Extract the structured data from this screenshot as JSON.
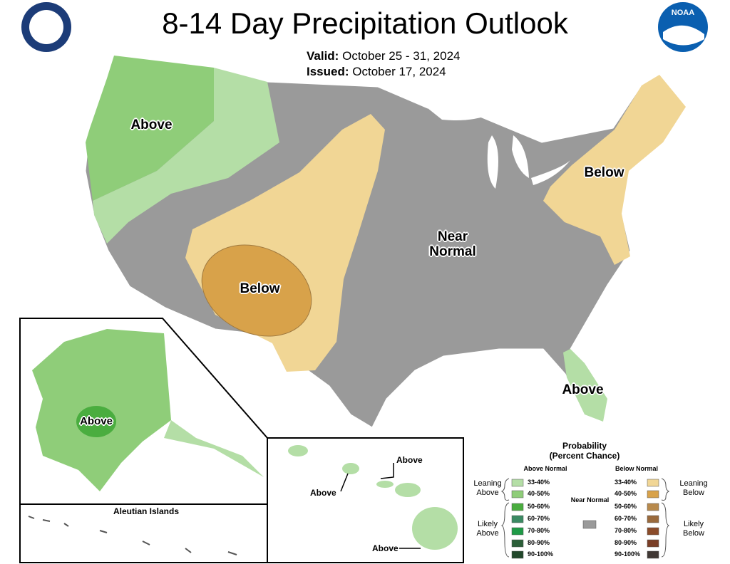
{
  "header": {
    "title": "8-14 Day Precipitation Outlook",
    "valid_label": "Valid:",
    "valid": "October 25 - 31, 2024",
    "issued_label": "Issued:",
    "issued": "October 17, 2024",
    "logo_right": "NOAA"
  },
  "map": {
    "labels": {
      "northwest": "Above",
      "southwest": "Below",
      "northeast": "Below",
      "center": "Near Normal",
      "florida": "Above"
    }
  },
  "insets": {
    "alaska": "Above",
    "aleutians": "Aleutian Islands",
    "hawaii": [
      "Above",
      "Above",
      "Above"
    ]
  },
  "legend": {
    "title": "Probability",
    "subtitle": "(Percent Chance)",
    "above_header": "Above Normal",
    "below_header": "Below Normal",
    "near_label": "Near Normal",
    "near_color": "#9a9a9a",
    "above": [
      {
        "label": "33-40%",
        "color": "#b4dea6"
      },
      {
        "label": "40-50%",
        "color": "#8fcd79"
      },
      {
        "label": "50-60%",
        "color": "#4aad3f"
      },
      {
        "label": "60-70%",
        "color": "#3b8a63"
      },
      {
        "label": "70-80%",
        "color": "#1f9a47"
      },
      {
        "label": "80-90%",
        "color": "#2b5e38"
      },
      {
        "label": "90-100%",
        "color": "#21472a"
      }
    ],
    "below": [
      {
        "label": "33-40%",
        "color": "#f1d695"
      },
      {
        "label": "40-50%",
        "color": "#d8a24a"
      },
      {
        "label": "50-60%",
        "color": "#b88a4c"
      },
      {
        "label": "60-70%",
        "color": "#9a6a3c"
      },
      {
        "label": "70-80%",
        "color": "#8b4c2a"
      },
      {
        "label": "80-90%",
        "color": "#7a3e26"
      },
      {
        "label": "90-100%",
        "color": "#403834"
      }
    ],
    "leaning_above": "Leaning Above",
    "likely_above": "Likely Above",
    "leaning_below": "Leaning Below",
    "likely_below": "Likely Below"
  }
}
